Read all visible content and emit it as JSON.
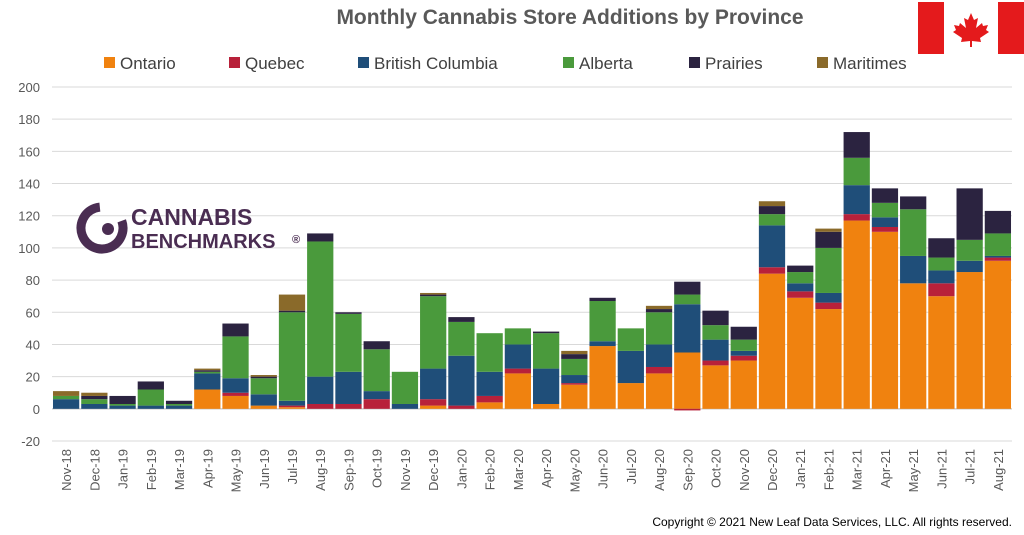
{
  "flag": {
    "name": "canada-flag-icon",
    "red": "#e41a1c"
  },
  "logo": {
    "line1": "CANNABIS",
    "line2": "BENCHMARKS",
    "mark": "®",
    "color": "#4a2d52"
  },
  "copyright": "Copyright © 2021  New Leaf Data Services, LLC. All rights reserved.",
  "chart_data": {
    "type": "bar",
    "stacked": true,
    "title": "Monthly Cannabis Store Additions by Province",
    "xlabel": "",
    "ylabel": "",
    "ylim": [
      -20,
      200
    ],
    "yticks": [
      -20,
      0,
      20,
      40,
      60,
      80,
      100,
      120,
      140,
      160,
      180,
      200
    ],
    "grid": true,
    "legend_position": "top",
    "categories": [
      "Nov-18",
      "Dec-18",
      "Jan-19",
      "Feb-19",
      "Mar-19",
      "Apr-19",
      "May-19",
      "Jun-19",
      "Jul-19",
      "Aug-19",
      "Sep-19",
      "Oct-19",
      "Nov-19",
      "Dec-19",
      "Jan-20",
      "Feb-20",
      "Mar-20",
      "Apr-20",
      "May-20",
      "Jun-20",
      "Jul-20",
      "Aug-20",
      "Sep-20",
      "Oct-20",
      "Nov-20",
      "Dec-20",
      "Jan-21",
      "Feb-21",
      "Mar-21",
      "Apr-21",
      "May-21",
      "Jun-21",
      "Jul-21",
      "Aug-21"
    ],
    "series": [
      {
        "name": "Ontario",
        "color": "#f0820f",
        "values": [
          0,
          0,
          0,
          0,
          0,
          12,
          8,
          2,
          1,
          0,
          0,
          0,
          0,
          2,
          0,
          4,
          22,
          3,
          15,
          39,
          16,
          22,
          35,
          27,
          30,
          84,
          69,
          62,
          117,
          110,
          78,
          70,
          85,
          92
        ]
      },
      {
        "name": "Quebec",
        "color": "#b8213a",
        "values": [
          0,
          0,
          0,
          0,
          0,
          0,
          2,
          0,
          1,
          3,
          3,
          6,
          0,
          4,
          2,
          4,
          3,
          0,
          1,
          0,
          0,
          4,
          -1,
          3,
          3,
          4,
          4,
          4,
          4,
          3,
          0,
          8,
          0,
          2
        ]
      },
      {
        "name": "British Columbia",
        "color": "#1f4e79",
        "values": [
          6,
          3,
          2,
          2,
          2,
          10,
          9,
          7,
          3,
          17,
          20,
          5,
          3,
          19,
          31,
          15,
          15,
          22,
          5,
          3,
          20,
          14,
          30,
          13,
          3,
          26,
          5,
          6,
          18,
          6,
          17,
          8,
          7,
          1
        ]
      },
      {
        "name": "Alberta",
        "color": "#4a9a3c",
        "values": [
          2,
          3,
          1,
          10,
          1,
          1,
          26,
          10,
          55,
          84,
          36,
          26,
          20,
          45,
          21,
          24,
          10,
          22,
          10,
          25,
          14,
          20,
          6,
          9,
          7,
          7,
          7,
          28,
          17,
          9,
          29,
          8,
          13,
          14
        ]
      },
      {
        "name": "Prairies",
        "color": "#2b2340",
        "values": [
          0,
          2,
          5,
          5,
          2,
          1,
          8,
          1,
          1,
          5,
          1,
          5,
          0,
          1,
          3,
          0,
          0,
          1,
          3,
          2,
          0,
          2,
          8,
          9,
          8,
          5,
          4,
          10,
          16,
          9,
          8,
          12,
          32,
          14
        ]
      },
      {
        "name": "Maritimes",
        "color": "#8a6a2a",
        "values": [
          3,
          2,
          0,
          0,
          0,
          1,
          0,
          1,
          10,
          0,
          0,
          0,
          0,
          1,
          0,
          0,
          0,
          0,
          2,
          0,
          0,
          2,
          0,
          0,
          0,
          3,
          0,
          2,
          0,
          0,
          0,
          0,
          0,
          0
        ]
      }
    ]
  }
}
